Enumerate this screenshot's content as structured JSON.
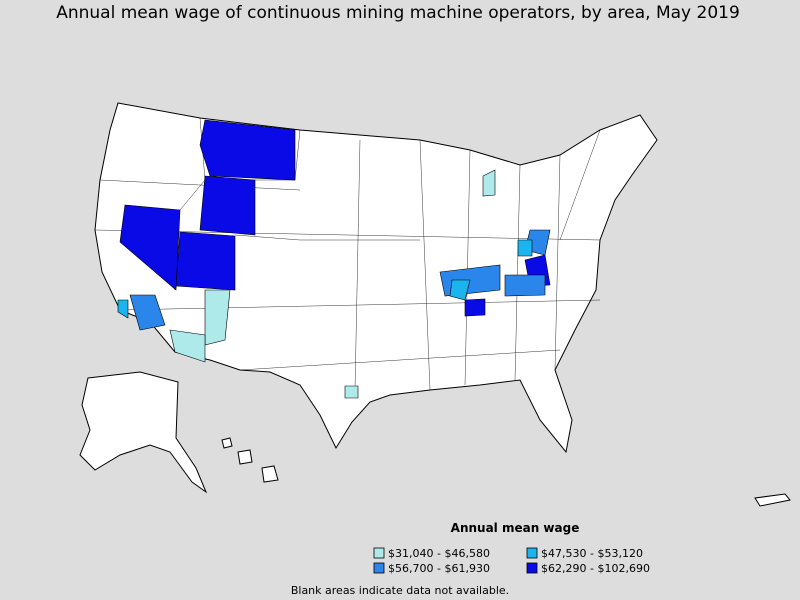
{
  "title": "Annual mean wage of continuous mining machine operators, by area, May 2019",
  "legend": {
    "title": "Annual mean wage",
    "items": [
      {
        "label": "$31,040 - $46,580",
        "color": "#aeeaea"
      },
      {
        "label": "$47,530 - $53,120",
        "color": "#1ab4ee"
      },
      {
        "label": "$56,700 - $61,930",
        "color": "#2a86ea"
      },
      {
        "label": "$62,290 - $102,690",
        "color": "#0a0ae6"
      }
    ]
  },
  "note": "Blank areas indicate data not available."
}
